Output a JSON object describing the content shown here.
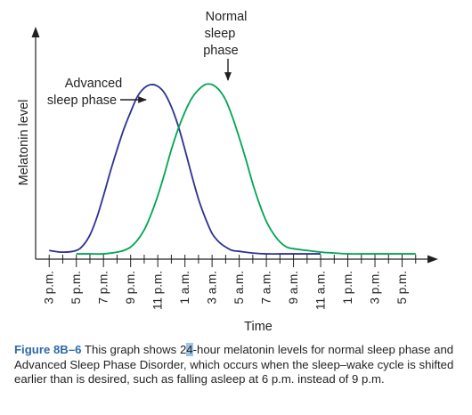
{
  "chart_data": {
    "type": "line",
    "xlabel": "Time",
    "ylabel": "Melatonin level",
    "x_ticks": [
      "3 p.m.",
      "5 p.m.",
      "7 p.m.",
      "9 p.m.",
      "11 p.m.",
      "1 a.m.",
      "3 a.m.",
      "5 a.m.",
      "7 a.m.",
      "9 a.m.",
      "11 a.m.",
      "1 p.m.",
      "3 p.m.",
      "5 p.m."
    ],
    "x_tick_hours": [
      15,
      17,
      19,
      21,
      23,
      25,
      27,
      29,
      31,
      33,
      35,
      37,
      39,
      41
    ],
    "xlim_hours": [
      14,
      43
    ],
    "ylim": [
      0,
      1
    ],
    "series": [
      {
        "name": "Advanced sleep phase",
        "color": "#2e3192",
        "x_hours": [
          15,
          16,
          17,
          17.5,
          18,
          18.5,
          19,
          19.5,
          20,
          20.5,
          21,
          21.5,
          22,
          22.5,
          23,
          23.5,
          24,
          24.5,
          25,
          25.5,
          26,
          26.5,
          27,
          27.5,
          28,
          28.5,
          29,
          30,
          31,
          32,
          33,
          34,
          35
        ],
        "y": [
          0.03,
          0.02,
          0.03,
          0.06,
          0.12,
          0.22,
          0.35,
          0.49,
          0.62,
          0.74,
          0.84,
          0.93,
          0.98,
          1.0,
          0.99,
          0.95,
          0.87,
          0.76,
          0.62,
          0.47,
          0.33,
          0.22,
          0.13,
          0.08,
          0.05,
          0.03,
          0.025,
          0.015,
          0.01,
          0.01,
          0.01,
          0.01,
          0.01
        ]
      },
      {
        "name": "Normal sleep phase",
        "color": "#00a651",
        "x_hours": [
          17,
          18,
          19,
          20,
          20.5,
          21,
          21.5,
          22,
          22.5,
          23,
          23.5,
          24,
          24.5,
          25,
          25.5,
          26,
          26.5,
          27,
          27.5,
          28,
          28.5,
          29,
          29.5,
          30,
          30.5,
          31,
          31.5,
          32,
          32.5,
          33,
          34,
          35,
          36,
          37,
          38,
          39,
          40,
          41,
          42
        ],
        "y": [
          0.01,
          0.01,
          0.01,
          0.02,
          0.03,
          0.05,
          0.09,
          0.15,
          0.24,
          0.35,
          0.48,
          0.62,
          0.74,
          0.84,
          0.92,
          0.97,
          1.0,
          1.0,
          0.97,
          0.91,
          0.81,
          0.69,
          0.56,
          0.42,
          0.3,
          0.2,
          0.13,
          0.08,
          0.05,
          0.04,
          0.03,
          0.02,
          0.015,
          0.01,
          0.01,
          0.01,
          0.01,
          0.01,
          0.01
        ]
      }
    ],
    "annotations": [
      {
        "text": "Advanced",
        "text2": "sleep phase",
        "series": "Advanced sleep phase"
      },
      {
        "text": "Normal",
        "text2": "sleep",
        "text3": "phase",
        "series": "Normal sleep phase"
      }
    ],
    "grid": false,
    "legend": "none"
  },
  "caption": {
    "label": "Figure 8B–6",
    "before_highlight": " This graph shows 2",
    "highlight": "4",
    "after_highlight": "-hour melatonin levels for normal sleep phase and Advanced Sleep Phase Disorder, which occurs when the sleep–wake cycle is shifted earlier than is desired, such as falling asleep at 6 p.m. instead of 9 p.m."
  }
}
